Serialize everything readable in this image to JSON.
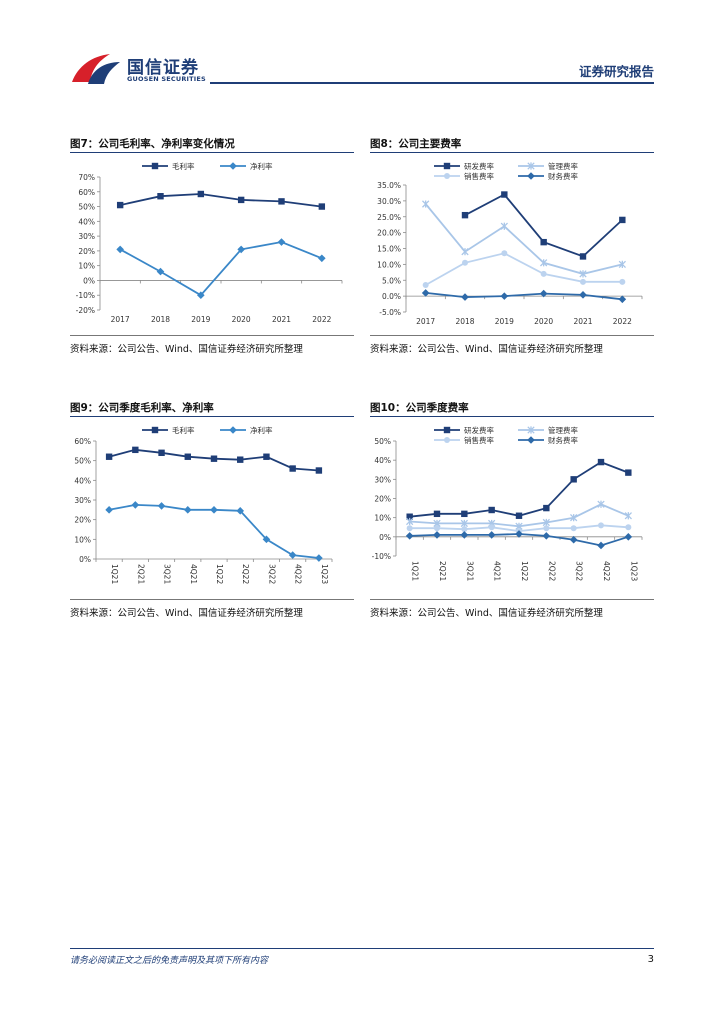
{
  "header": {
    "logo_cn": "国信证券",
    "logo_en": "GUOSEN SECURITIES",
    "report_type": "证券研究报告"
  },
  "figures": [
    {
      "title": "图7：公司毛利率、净利率变化情况",
      "source": "资料来源：公司公告、Wind、国信证券经济研究所整理"
    },
    {
      "title": "图8：公司主要费率",
      "source": "资料来源：公司公告、Wind、国信证券经济研究所整理"
    },
    {
      "title": "图9：公司季度毛利率、净利率",
      "source": "资料来源：公司公告、Wind、国信证券经济研究所整理"
    },
    {
      "title": "图10：公司季度费率",
      "source": "资料来源：公司公告、Wind、国信证券经济研究所整理"
    }
  ],
  "chart_data": [
    {
      "type": "line",
      "categories": [
        "2017",
        "2018",
        "2019",
        "2020",
        "2021",
        "2022"
      ],
      "ylim": [
        -20,
        70
      ],
      "yticks": [
        "-20%",
        "-10%",
        "0%",
        "10%",
        "20%",
        "30%",
        "40%",
        "50%",
        "60%",
        "70%"
      ],
      "legend_position": "top",
      "series": [
        {
          "name": "毛利率",
          "values": [
            51,
            57,
            58.5,
            54.5,
            53.5,
            50
          ],
          "color": "#1f3e77",
          "marker": "square"
        },
        {
          "name": "净利率",
          "values": [
            21,
            6,
            -10,
            21,
            26,
            15
          ],
          "color": "#3a87c8",
          "marker": "diamond"
        }
      ]
    },
    {
      "type": "line",
      "categories": [
        "2017",
        "2018",
        "2019",
        "2020",
        "2021",
        "2022"
      ],
      "ylim": [
        -5,
        35
      ],
      "yticks": [
        "-5.0%",
        "0.0%",
        "5.0%",
        "10.0%",
        "15.0%",
        "20.0%",
        "25.0%",
        "30.0%",
        "35.0%"
      ],
      "legend_position": "top",
      "series": [
        {
          "name": "研发费率",
          "values": [
            null,
            25.5,
            32,
            17,
            12.5,
            24
          ],
          "color": "#1f3e77",
          "marker": "square"
        },
        {
          "name": "管理费率",
          "values": [
            29,
            14,
            22,
            10.5,
            7,
            10
          ],
          "color": "#a9c6e8",
          "marker": "x"
        },
        {
          "name": "销售费率",
          "values": [
            3.5,
            10.5,
            13.5,
            7,
            4.5,
            4.5
          ],
          "color": "#bcd3ef",
          "marker": "circle"
        },
        {
          "name": "财务费率",
          "values": [
            1,
            -0.3,
            0,
            0.8,
            0.4,
            -1
          ],
          "color": "#2e6aa9",
          "marker": "diamond"
        }
      ]
    },
    {
      "type": "line",
      "categories": [
        "1Q21",
        "2Q21",
        "3Q21",
        "4Q21",
        "1Q22",
        "2Q22",
        "3Q22",
        "4Q22",
        "1Q23"
      ],
      "ylim": [
        0,
        60
      ],
      "yticks": [
        "0%",
        "10%",
        "20%",
        "30%",
        "40%",
        "50%",
        "60%"
      ],
      "legend_position": "top",
      "series": [
        {
          "name": "毛利率",
          "values": [
            52,
            55.5,
            54,
            52,
            51,
            50.5,
            52,
            46,
            45
          ],
          "color": "#1f3e77",
          "marker": "square"
        },
        {
          "name": "净利率",
          "values": [
            25,
            27.5,
            27,
            25,
            25,
            24.5,
            10,
            2,
            0.5
          ],
          "color": "#3a87c8",
          "marker": "diamond"
        }
      ]
    },
    {
      "type": "line",
      "categories": [
        "1Q21",
        "2Q21",
        "3Q21",
        "4Q21",
        "1Q22",
        "2Q22",
        "3Q22",
        "4Q22",
        "1Q23"
      ],
      "ylim": [
        -10,
        50
      ],
      "yticks": [
        "-10%",
        "0%",
        "10%",
        "20%",
        "30%",
        "40%",
        "50%"
      ],
      "legend_position": "top",
      "series": [
        {
          "name": "研发费率",
          "values": [
            10.5,
            12,
            12,
            14,
            11,
            15,
            30,
            39,
            33.5
          ],
          "color": "#1f3e77",
          "marker": "square"
        },
        {
          "name": "管理费率",
          "values": [
            8,
            7,
            7,
            7,
            5.5,
            7.5,
            10,
            17,
            11
          ],
          "color": "#a9c6e8",
          "marker": "x"
        },
        {
          "name": "销售费率",
          "values": [
            4.5,
            4.5,
            4,
            5,
            3,
            4.5,
            4.5,
            6,
            5
          ],
          "color": "#bcd3ef",
          "marker": "circle"
        },
        {
          "name": "财务费率",
          "values": [
            0.5,
            1,
            1,
            1,
            1.5,
            0.5,
            -1.5,
            -4.5,
            0
          ],
          "color": "#2e6aa9",
          "marker": "diamond"
        }
      ]
    }
  ],
  "footer": {
    "disclaimer": "请务必阅读正文之后的免责声明及其项下所有内容",
    "page_number": "3"
  }
}
